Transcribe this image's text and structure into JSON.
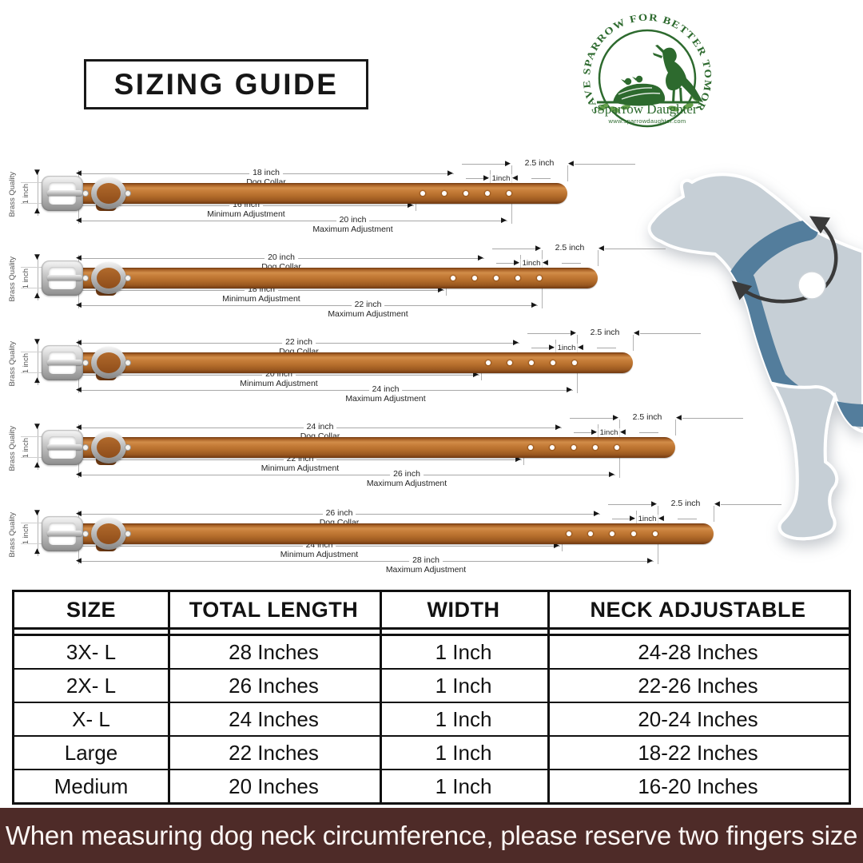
{
  "title": "SIZING GUIDE",
  "logo": {
    "arc_text": "SAVE SPARROW FOR BETTER TOMORROW",
    "brand": "Sparrow Daughter",
    "website": "www.sparrowdaughter.com",
    "green": "#2d6a2e"
  },
  "diagram": {
    "left_label_outer": "Brass Quality",
    "left_label_inner": "1 inch",
    "dog_collar_suffix": "Dog Collar",
    "min_suffix": "Minimum Adjustment",
    "max_suffix": "Maximum Adjustment",
    "hole_gap_label": "1inch",
    "tip_label": "2.5 inch",
    "collars": [
      {
        "length_label": "18 inch",
        "min_label": "16 inch",
        "max_label": "20 inch"
      },
      {
        "length_label": "20 inch",
        "min_label": "18 inch",
        "max_label": "22 inch"
      },
      {
        "length_label": "22 inch",
        "min_label": "20 inch",
        "max_label": "24 inch"
      },
      {
        "length_label": "24 inch",
        "min_label": "22 inch",
        "max_label": "26 inch"
      },
      {
        "length_label": "26 inch",
        "min_label": "24 inch",
        "max_label": "28 inch"
      }
    ]
  },
  "table": {
    "headers": [
      "SIZE",
      "TOTAL LENGTH",
      "WIDTH",
      "NECK ADJUSTABLE"
    ],
    "rows": [
      [
        "3X- L",
        "28 Inches",
        "1 Inch",
        "24-28 Inches"
      ],
      [
        "2X- L",
        "26 Inches",
        "1 Inch",
        "22-26 Inches"
      ],
      [
        "X- L",
        "24 Inches",
        "1 Inch",
        "20-24 Inches"
      ],
      [
        "Large",
        "22 Inches",
        "1 Inch",
        "18-22 Inches"
      ],
      [
        "Medium",
        "20 Inches",
        "1 Inch",
        "16-20 Inches"
      ]
    ]
  },
  "footer": {
    "text": "When measuring dog neck circumference, please reserve two fingers size",
    "bg": "#4e2b28"
  },
  "colors": {
    "collar_leather": "#b96f30",
    "dog_body": "#c6cfd6",
    "harness": "#537d9c",
    "arrow": "#3a3a3a"
  }
}
